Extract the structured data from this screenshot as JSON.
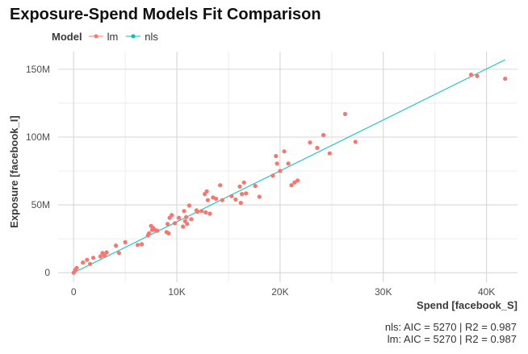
{
  "chart_data": {
    "type": "scatter",
    "title": "Exposure-Spend Models Fit Comparison",
    "xlabel": "Spend [facebook_S]",
    "ylabel": "Exposure [facebook_I]",
    "xlim": [
      -1500,
      43000
    ],
    "ylim": [
      -7000000,
      163000000
    ],
    "x_ticks": [
      0,
      10000,
      20000,
      30000,
      40000
    ],
    "x_tick_labels": [
      "0",
      "10K",
      "20K",
      "30K",
      "40K"
    ],
    "y_ticks": [
      0,
      50000000,
      100000000,
      150000000
    ],
    "y_tick_labels": [
      "0",
      "50M",
      "100M",
      "150M"
    ],
    "grid": true,
    "legend": {
      "title": "Model",
      "placement": "top-left",
      "entries": [
        {
          "name": "lm",
          "color": "#F8766D"
        },
        {
          "name": "nls",
          "color": "#00BFC4"
        }
      ]
    },
    "series": [
      {
        "name": "lm",
        "kind": "points",
        "color": "#F8766D",
        "points": [
          [
            0,
            0
          ],
          [
            150,
            2000000
          ],
          [
            300,
            3500000
          ],
          [
            900,
            7500000
          ],
          [
            1300,
            9500000
          ],
          [
            1600,
            6500000
          ],
          [
            1900,
            11000000
          ],
          [
            2600,
            12000000
          ],
          [
            2800,
            14500000
          ],
          [
            3000,
            12500000
          ],
          [
            3200,
            15000000
          ],
          [
            4100,
            20000000
          ],
          [
            4400,
            14500000
          ],
          [
            5000,
            22500000
          ],
          [
            6200,
            20500000
          ],
          [
            6600,
            21000000
          ],
          [
            7200,
            27500000
          ],
          [
            7300,
            29000000
          ],
          [
            7500,
            34500000
          ],
          [
            7600,
            31500000
          ],
          [
            7700,
            33000000
          ],
          [
            7900,
            31500000
          ],
          [
            8100,
            31000000
          ],
          [
            9000,
            30000000
          ],
          [
            9100,
            36000000
          ],
          [
            9200,
            29000000
          ],
          [
            9300,
            40500000
          ],
          [
            9500,
            42500000
          ],
          [
            9800,
            36500000
          ],
          [
            10200,
            40500000
          ],
          [
            10600,
            34000000
          ],
          [
            10700,
            45500000
          ],
          [
            10800,
            38000000
          ],
          [
            10900,
            41000000
          ],
          [
            11000,
            36000000
          ],
          [
            11200,
            49500000
          ],
          [
            11400,
            39500000
          ],
          [
            11900,
            46000000
          ],
          [
            12000,
            45000000
          ],
          [
            12400,
            45500000
          ],
          [
            12700,
            58000000
          ],
          [
            12800,
            44500000
          ],
          [
            12900,
            60000000
          ],
          [
            13000,
            53500000
          ],
          [
            13200,
            43500000
          ],
          [
            13500,
            55500000
          ],
          [
            13800,
            54500000
          ],
          [
            14200,
            64500000
          ],
          [
            14400,
            53500000
          ],
          [
            15300,
            56500000
          ],
          [
            15700,
            54000000
          ],
          [
            16100,
            63500000
          ],
          [
            16200,
            51500000
          ],
          [
            16300,
            58000000
          ],
          [
            16500,
            66500000
          ],
          [
            16700,
            58500000
          ],
          [
            17600,
            64000000
          ],
          [
            18000,
            56000000
          ],
          [
            19300,
            71500000
          ],
          [
            19600,
            86000000
          ],
          [
            19700,
            80500000
          ],
          [
            20000,
            75000000
          ],
          [
            20400,
            89500000
          ],
          [
            20800,
            80500000
          ],
          [
            21100,
            64500000
          ],
          [
            21400,
            66500000
          ],
          [
            21700,
            68000000
          ],
          [
            22900,
            96000000
          ],
          [
            23600,
            92000000
          ],
          [
            24200,
            101500000
          ],
          [
            24800,
            88000000
          ],
          [
            26300,
            117000000
          ],
          [
            27300,
            96500000
          ],
          [
            38500,
            146000000
          ],
          [
            39100,
            145000000
          ],
          [
            41800,
            143000000
          ]
        ]
      },
      {
        "name": "nls",
        "kind": "line",
        "color": "#00BFC4",
        "points": [
          [
            0,
            0
          ],
          [
            41800,
            157000000
          ]
        ]
      }
    ],
    "annotations": [
      "nls: AIC = 5270 | R2 = 0.987",
      "lm: AIC = 5270 | R2 = 0.987"
    ]
  }
}
